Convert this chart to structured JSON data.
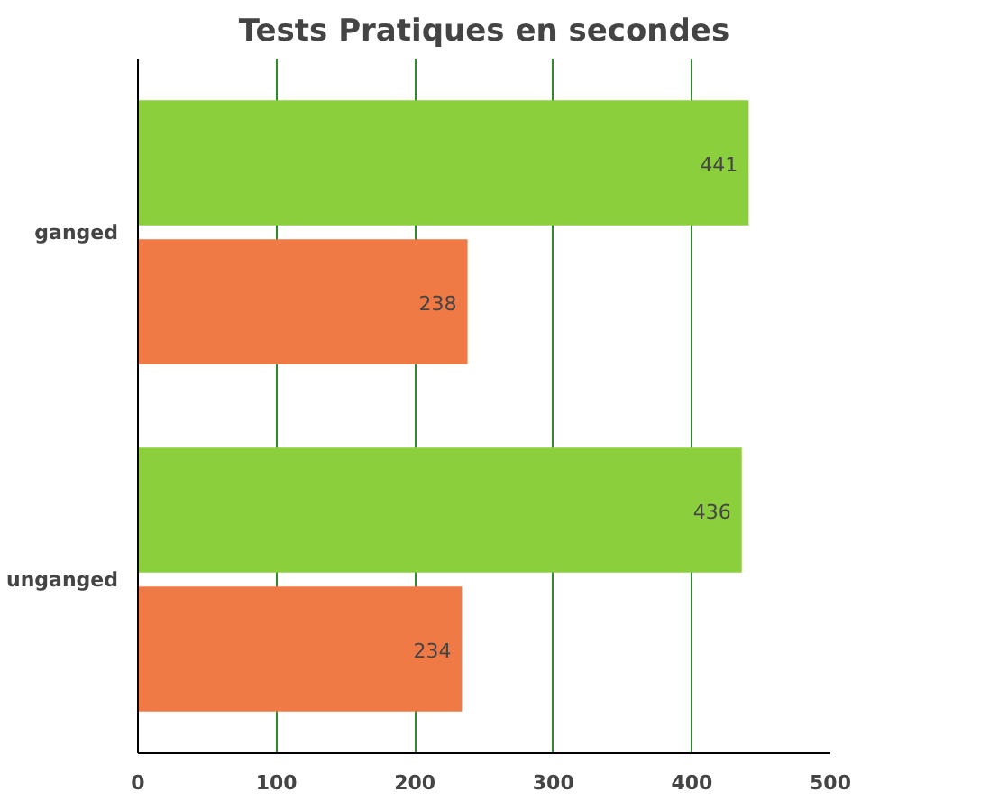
{
  "chart_data": {
    "type": "bar",
    "orientation": "horizontal",
    "title": "Tests Pratiques en secondes",
    "categories": [
      "ganged",
      "unganged"
    ],
    "series": [
      {
        "color": "#8ccf3c",
        "values": [
          441,
          436
        ]
      },
      {
        "color": "#ef7a45",
        "values": [
          238,
          234
        ]
      }
    ],
    "xlim": [
      0,
      500
    ],
    "xticks": [
      0,
      100,
      200,
      300,
      400,
      500
    ],
    "grid": "x",
    "data_labels": true
  }
}
